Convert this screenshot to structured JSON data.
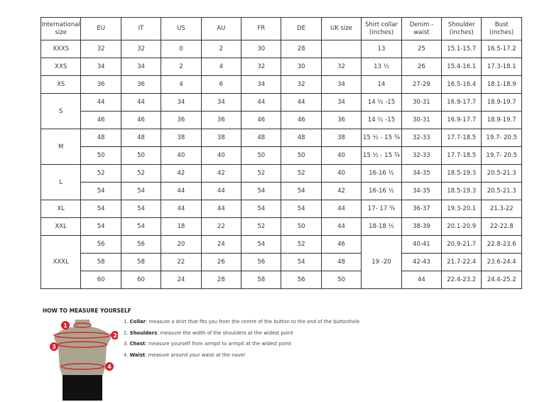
{
  "table": {
    "headers": [
      "International size",
      "EU",
      "IT",
      "US",
      "AU",
      "FR",
      "DE",
      "UK size",
      "Shirt collar (inches)",
      "Denim - waist",
      "Shoulder (inches)",
      "Bust (inches)"
    ],
    "rows": [
      [
        "XXXS",
        "32",
        "32",
        "0",
        "2",
        "30",
        "28",
        "",
        "13",
        "25",
        "15.1-15.7",
        "16.5-17.2"
      ],
      [
        "XXS",
        "34",
        "34",
        "2",
        "4",
        "32",
        "30",
        "32",
        "13 ½",
        "26",
        "15.4-16.1",
        "17.3-18.1"
      ],
      [
        "XS",
        "36",
        "36",
        "4",
        "6",
        "34",
        "32",
        "34",
        "14",
        "27-29",
        "16.5-16.4",
        "18.1-18.9"
      ],
      [
        "S",
        "44",
        "44",
        "34",
        "34",
        "44",
        "44",
        "34",
        "14 ½ -15",
        "30-31",
        "16.9-17.7",
        "18.9-19.7"
      ],
      [
        null,
        "46",
        "46",
        "36",
        "36",
        "46",
        "46",
        "36",
        "14 ½ -15",
        "30-31",
        "16.9-17.7",
        "18.9-19.7"
      ],
      [
        "M",
        "48",
        "48",
        "38",
        "38",
        "48",
        "48",
        "38",
        "15 ½ - 15 ¾",
        "32-33",
        "17.7-18.5",
        "19.7- 20.5"
      ],
      [
        null,
        "50",
        "50",
        "40",
        "40",
        "50",
        "50",
        "40",
        "15 ½ - 15 ¾",
        "32-33",
        "17.7-18.5",
        "19.7- 20.5"
      ],
      [
        "L",
        "52",
        "52",
        "42",
        "42",
        "52",
        "52",
        "40",
        "16-16 ½",
        "34-35",
        "18.5-19.3",
        "20.5-21.3"
      ],
      [
        null,
        "54",
        "54",
        "44",
        "44",
        "54",
        "54",
        "42",
        "16-16 ½",
        "34-35",
        "18.5-19.3",
        "20.5-21.3"
      ],
      [
        "XL",
        "54",
        "54",
        "44",
        "44",
        "54",
        "54",
        "44",
        "17- 17 ¾",
        "36-37",
        "19.3-20.1",
        "21.3-22"
      ],
      [
        "XXL",
        "54",
        "54",
        "18",
        "22",
        "52",
        "50",
        "44",
        "18-18 ½",
        "38-39",
        "20.1-20.9",
        "22-22.8"
      ],
      [
        "XXXL",
        "56",
        "56",
        "20",
        "24",
        "54",
        "52",
        "46",
        "19 -20",
        "40-41",
        "20.9-21.7",
        "22.8-23.6"
      ],
      [
        null,
        "58",
        "58",
        "22",
        "26",
        "56",
        "54",
        "48",
        null,
        "42-43",
        "21.7-22.4",
        "23.6-24.4"
      ],
      [
        null,
        "60",
        "60",
        "24",
        "28",
        "58",
        "56",
        "50",
        null,
        "44",
        "22.4-23.2",
        "24.4-25.2"
      ]
    ]
  },
  "measure": {
    "title": "HOW TO MEASURE YOURSELF",
    "items": [
      {
        "num": "1.",
        "term": "Collar",
        "text": ": measure a shirt that fits you from the centre of the button to the end of the buttonhole"
      },
      {
        "num": "2.",
        "term": "Shoulders",
        "text": ": measure the width of the shoulders at the widest point"
      },
      {
        "num": "3.",
        "term": "Chest",
        "text": ": measure yourself from armpit to armpit at the widest point"
      },
      {
        "num": "4.",
        "term": "Waist",
        "text": ": measure around your waist at the navel"
      }
    ],
    "markers": [
      "1",
      "2",
      "3",
      "4"
    ],
    "accent": "#d9202e"
  }
}
